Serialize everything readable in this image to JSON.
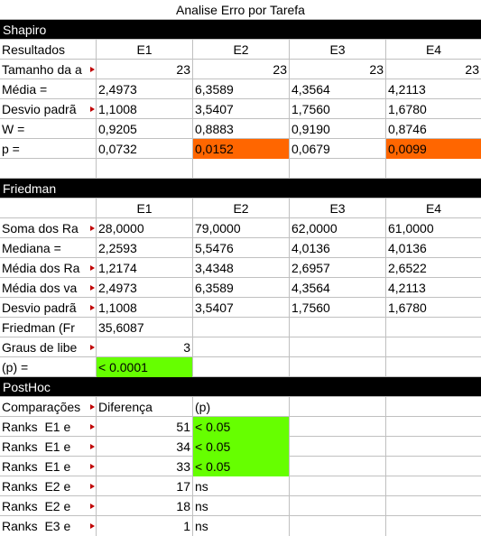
{
  "title": "Analise Erro por Tarefa",
  "shapiro": {
    "header": "Shapiro",
    "col_label": "Resultados",
    "cols": [
      "E1",
      "E2",
      "E3",
      "E4"
    ],
    "rows": [
      {
        "label": "Tamanho da a",
        "values": [
          "23",
          "23",
          "23",
          "23"
        ]
      },
      {
        "label": "Média =",
        "values": [
          "2,4973",
          "6,3589",
          "4,3564",
          "4,2113"
        ]
      },
      {
        "label": "Desvio padrã",
        "values": [
          "1,1008",
          "3,5407",
          "1,7560",
          "1,6780"
        ]
      },
      {
        "label": "W =",
        "values": [
          "0,9205",
          "0,8883",
          "0,9190",
          "0,8746"
        ]
      },
      {
        "label": "p =",
        "values": [
          "0,0732",
          "0,0152",
          "0,0679",
          "0,0099"
        ]
      }
    ],
    "highlight_color": "#ff6600"
  },
  "friedman": {
    "header": "Friedman",
    "cols": [
      "E1",
      "E2",
      "E3",
      "E4"
    ],
    "rows": [
      {
        "label": "Soma dos Ra",
        "values": [
          "28,0000",
          "79,0000",
          "62,0000",
          "61,0000"
        ]
      },
      {
        "label": "Mediana =",
        "values": [
          "2,2593",
          "5,5476",
          "4,0136",
          "4,0136"
        ]
      },
      {
        "label": "Média dos Ra",
        "values": [
          "1,2174",
          "3,4348",
          "2,6957",
          "2,6522"
        ]
      },
      {
        "label": "Média dos va",
        "values": [
          "2,4973",
          "6,3589",
          "4,3564",
          "4,2113"
        ]
      },
      {
        "label": "Desvio padrã",
        "values": [
          "1,1008",
          "3,5407",
          "1,7560",
          "1,6780"
        ]
      }
    ],
    "stat_label": "Friedman (Fr",
    "stat_value": "35,6087",
    "df_label": "Graus de libe",
    "df_value": "3",
    "p_label": "(p) =",
    "p_value": "< 0.0001",
    "highlight_color": "#66ff00"
  },
  "posthoc": {
    "header": "PostHoc",
    "col_comp": "Comparações",
    "col_diff": "Diferença",
    "col_p": "(p)",
    "rows": [
      {
        "label": "Ranks  E1 e",
        "diff": "51",
        "p": "< 0.05"
      },
      {
        "label": "Ranks  E1 e",
        "diff": "34",
        "p": "< 0.05"
      },
      {
        "label": "Ranks  E1 e",
        "diff": "33",
        "p": "< 0.05"
      },
      {
        "label": "Ranks  E2 e",
        "diff": "17",
        "p": "ns"
      },
      {
        "label": "Ranks  E2 e",
        "diff": "18",
        "p": "ns"
      },
      {
        "label": "Ranks  E3 e",
        "diff": "1",
        "p": "ns"
      }
    ]
  }
}
